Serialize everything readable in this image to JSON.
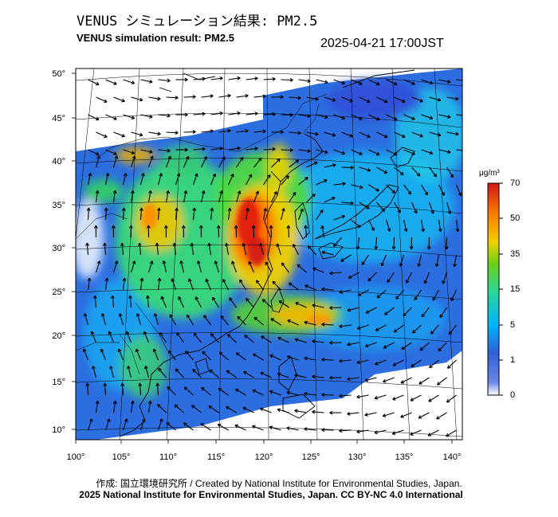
{
  "title_jp": "VENUS シミュレーション結果: PM2.5",
  "title_en": "VENUS simulation result: PM2.5",
  "timestamp": "2025-04-21 17:00JST",
  "credit": "作成: 国立環境研究所 / Created by National Institute for Environmental Studies, Japan.",
  "copyright": "2025 National Institute for Environmental Studies, Japan. CC BY-NC 4.0 International",
  "colorbar": {
    "unit": "μg/m³",
    "ticks": [
      "70",
      "50",
      "35",
      "15",
      "5",
      "1",
      "0"
    ],
    "colors": [
      "#ffffff",
      "#2f5fd8",
      "#00b4ff",
      "#30d890",
      "#68d018",
      "#f0d000",
      "#ff8000",
      "#d01818"
    ]
  },
  "axes": {
    "lat_labels": [
      "50°",
      "45°",
      "40°",
      "35°",
      "30°",
      "25°",
      "20°",
      "15°",
      "10°"
    ],
    "lon_labels": [
      "100°",
      "105°",
      "110°",
      "115°",
      "120°",
      "125°",
      "130°",
      "135°",
      "140°"
    ]
  },
  "colors": {
    "map_background": "#ffffff",
    "land_outline": "#000000",
    "graticule": "#000000",
    "arrow": "#000000"
  }
}
